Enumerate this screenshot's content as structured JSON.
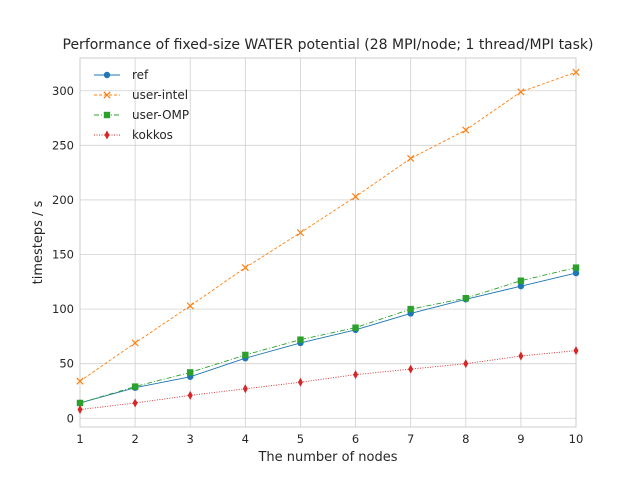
{
  "chart_data": {
    "type": "line",
    "title": "Performance of fixed-size WATER potential (28 MPI/node; 1 thread/MPI task)",
    "xlabel": "The number of nodes",
    "ylabel": "timesteps / s",
    "x": [
      1,
      2,
      3,
      4,
      5,
      6,
      7,
      8,
      9,
      10
    ],
    "xlim": [
      1,
      10
    ],
    "ylim": [
      -8,
      330
    ],
    "xticks": [
      1,
      2,
      3,
      4,
      5,
      6,
      7,
      8,
      9,
      10
    ],
    "yticks": [
      0,
      50,
      100,
      150,
      200,
      250,
      300
    ],
    "grid": true,
    "legend_position": "top-left",
    "series": [
      {
        "name": "ref",
        "values": [
          14,
          28,
          38,
          55,
          69,
          81,
          96,
          109,
          121,
          133
        ],
        "color": "#1f77b4",
        "marker": "circle",
        "line_style": "solid"
      },
      {
        "name": "user-intel",
        "values": [
          34,
          69,
          103,
          138,
          170,
          203,
          238,
          264,
          299,
          317
        ],
        "color": "#ff7f0e",
        "marker": "x",
        "line_style": "dashed"
      },
      {
        "name": "user-OMP",
        "values": [
          14,
          29,
          42,
          58,
          72,
          83,
          100,
          110,
          126,
          138
        ],
        "color": "#2ca02c",
        "marker": "square",
        "line_style": "dashdot"
      },
      {
        "name": "kokkos",
        "values": [
          8,
          14,
          21,
          27,
          33,
          40,
          45,
          50,
          57,
          62
        ],
        "color": "#d62728",
        "marker": "diamond",
        "line_style": "dotted"
      }
    ]
  }
}
